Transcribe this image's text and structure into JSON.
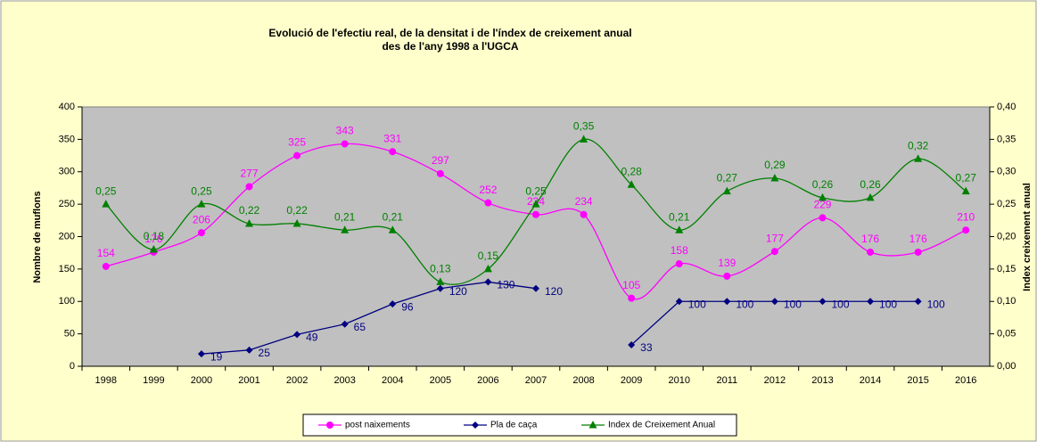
{
  "chart_data": {
    "type": "line",
    "title": [
      "Evolució de l'efectiu real, de la densitat i de l'índex de creixement anual",
      "des de l'any 1998 a l'UGCA"
    ],
    "y_label": "Nombre de muflons",
    "y2_label": "Index creixement anual",
    "categories": [
      "1998",
      "1999",
      "2000",
      "2001",
      "2002",
      "2003",
      "2004",
      "2005",
      "2006",
      "2007",
      "2008",
      "2009",
      "2010",
      "2011",
      "2012",
      "2013",
      "2014",
      "2015",
      "2016"
    ],
    "ylim": [
      0,
      400
    ],
    "yticks": [
      0,
      50,
      100,
      150,
      200,
      250,
      300,
      350,
      400
    ],
    "y2lim": [
      0,
      0.4
    ],
    "y2ticks": [
      {
        "value": 0,
        "label": "0,00"
      },
      {
        "value": 0.05,
        "label": "0,05"
      },
      {
        "value": 0.1,
        "label": "0,10"
      },
      {
        "value": 0.15,
        "label": "0,15"
      },
      {
        "value": 0.2,
        "label": "0,20"
      },
      {
        "value": 0.25,
        "label": "0,25"
      },
      {
        "value": 0.3,
        "label": "0,30"
      },
      {
        "value": 0.35,
        "label": "0,35"
      },
      {
        "value": 0.4,
        "label": "0,40"
      }
    ],
    "series": [
      {
        "name": "post naixements",
        "color": "#ff00ff",
        "marker": "circle",
        "smooth": true,
        "values": [
          154,
          176,
          206,
          277,
          325,
          343,
          331,
          297,
          252,
          234,
          234,
          105,
          158,
          139,
          177,
          229,
          176,
          176,
          210
        ]
      },
      {
        "name": "Pla de caça",
        "color": "#000080",
        "marker": "diamond",
        "smooth": false,
        "values": [
          null,
          null,
          19,
          25,
          49,
          65,
          96,
          120,
          130,
          120,
          null,
          33,
          100,
          100,
          100,
          100,
          100,
          100,
          null
        ]
      },
      {
        "name": "Index de Creixement Anual",
        "color": "#008000",
        "marker": "triangle",
        "smooth": true,
        "axis": "y2",
        "values": [
          0.25,
          0.18,
          0.25,
          0.22,
          0.22,
          0.21,
          0.21,
          0.13,
          0.15,
          0.25,
          0.35,
          0.28,
          0.21,
          0.27,
          0.29,
          0.26,
          0.26,
          0.32,
          0.27
        ],
        "value_labels": [
          "0,25",
          "0,18",
          "0,25",
          "0,22",
          "0,22",
          "0,21",
          "0,21",
          "0,13",
          "0,15",
          "0,25",
          "0,35",
          "0,28",
          "0,21",
          "0,27",
          "0,29",
          "0,26",
          "0,26",
          "0,32",
          "0,27"
        ]
      }
    ],
    "plot_background": "#c0c0c0"
  }
}
